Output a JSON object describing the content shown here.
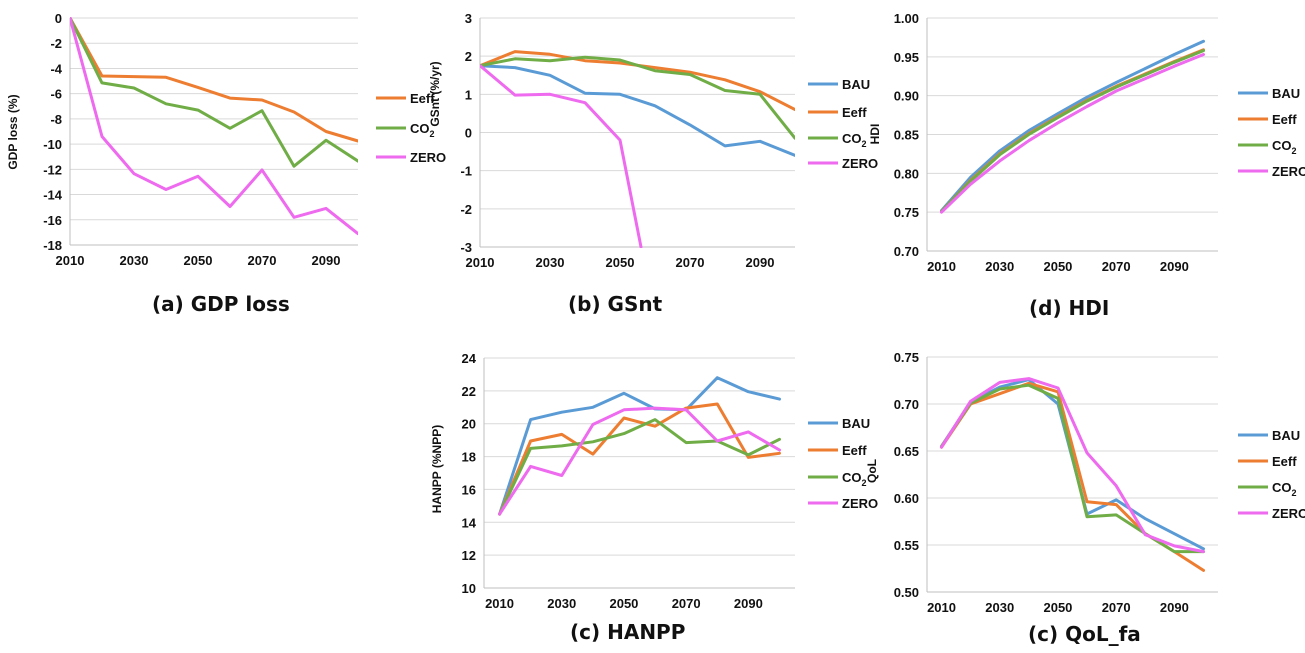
{
  "chart_data": [
    {
      "id": "gdp",
      "caption": "(a) GDP loss",
      "type": "line",
      "ylabel": "GDP loss (%)",
      "xlabel": "",
      "xlim": [
        2010,
        2100
      ],
      "ylim": [
        -18,
        0
      ],
      "xticks": [
        2010,
        2030,
        2050,
        2070,
        2090
      ],
      "yticks": [
        0,
        -2,
        -4,
        -6,
        -8,
        -10,
        -12,
        -14,
        -16,
        -18
      ],
      "ytick_labels": [
        "0",
        "-2",
        "-4",
        "-6",
        "-8",
        "-10",
        "-12",
        "-14",
        "-16",
        "-18"
      ],
      "grid": true,
      "legend": "right",
      "x": [
        2010,
        2020,
        2030,
        2040,
        2050,
        2060,
        2070,
        2080,
        2090,
        2100
      ],
      "series": [
        {
          "name": "Eeff",
          "color": "#ed7d31",
          "values": [
            0,
            -4.6,
            -4.65,
            -4.7,
            -5.5,
            -6.35,
            -6.5,
            -7.45,
            -9.0,
            -9.75
          ]
        },
        {
          "name": "CO₂",
          "color": "#70ad47",
          "values": [
            0,
            -5.15,
            -5.55,
            -6.8,
            -7.3,
            -8.75,
            -7.35,
            -11.75,
            -9.7,
            -11.35
          ]
        },
        {
          "name": "ZERO",
          "color": "#ee6aee",
          "values": [
            0,
            -9.4,
            -12.35,
            -13.6,
            -12.55,
            -14.95,
            -12.05,
            -15.8,
            -15.1,
            -17.1
          ]
        }
      ]
    },
    {
      "id": "gsnt",
      "caption": "(b) GSnt",
      "type": "line",
      "ylabel": "GSnt (%/yr)",
      "xlabel": "",
      "xlim": [
        2010,
        2100
      ],
      "ylim": [
        -3,
        3
      ],
      "xticks": [
        2010,
        2030,
        2050,
        2070,
        2090
      ],
      "yticks": [
        3,
        2,
        1,
        0,
        -1,
        -2,
        -3
      ],
      "ytick_labels": [
        "3",
        "2",
        "1",
        "0",
        "-1",
        "-2",
        "-3"
      ],
      "grid": true,
      "legend": "right",
      "x": [
        2010,
        2020,
        2030,
        2040,
        2050,
        2060,
        2070,
        2080,
        2090,
        2100
      ],
      "series": [
        {
          "name": "BAU",
          "color": "#5b9bd5",
          "values": [
            1.75,
            1.7,
            1.5,
            1.03,
            1.0,
            0.7,
            0.2,
            -0.35,
            -0.23,
            -0.6
          ]
        },
        {
          "name": "Eeff",
          "color": "#ed7d31",
          "values": [
            1.75,
            2.12,
            2.05,
            1.88,
            1.82,
            1.7,
            1.58,
            1.38,
            1.07,
            0.6
          ]
        },
        {
          "name": "CO₂",
          "color": "#70ad47",
          "values": [
            1.75,
            1.93,
            1.88,
            1.97,
            1.9,
            1.62,
            1.52,
            1.1,
            1.0,
            -0.15
          ]
        },
        {
          "name": "ZERO",
          "color": "#ee6aee",
          "x": [
            2010,
            2020,
            2030,
            2040,
            2050,
            2056
          ],
          "values": [
            1.75,
            0.98,
            1.0,
            0.78,
            -0.2,
            -3.0
          ]
        }
      ]
    },
    {
      "id": "hdi",
      "caption": "(d) HDI",
      "type": "line",
      "ylabel": "HDI",
      "xlabel": "",
      "xlim": [
        2005,
        2105
      ],
      "ylim": [
        0.7,
        1.0
      ],
      "xticks": [
        2010,
        2030,
        2050,
        2070,
        2090
      ],
      "yticks": [
        1.0,
        0.95,
        0.9,
        0.85,
        0.8,
        0.75,
        0.7
      ],
      "ytick_labels": [
        "1.00",
        "0.95",
        "0.90",
        "0.85",
        "0.80",
        "0.75",
        "0.70"
      ],
      "grid": true,
      "legend": "right",
      "x": [
        2010,
        2020,
        2030,
        2040,
        2050,
        2060,
        2070,
        2080,
        2090,
        2100
      ],
      "series": [
        {
          "name": "BAU",
          "color": "#5b9bd5",
          "values": [
            0.752,
            0.795,
            0.829,
            0.855,
            0.877,
            0.898,
            0.917,
            0.935,
            0.953,
            0.97
          ]
        },
        {
          "name": "Eeff",
          "color": "#ed7d31",
          "values": [
            0.751,
            0.791,
            0.825,
            0.851,
            0.873,
            0.894,
            0.912,
            0.928,
            0.944,
            0.959
          ]
        },
        {
          "name": "CO₂",
          "color": "#70ad47",
          "values": [
            0.751,
            0.79,
            0.824,
            0.85,
            0.872,
            0.893,
            0.911,
            0.927,
            0.943,
            0.958
          ]
        },
        {
          "name": "ZERO",
          "color": "#ee6aee",
          "values": [
            0.75,
            0.786,
            0.816,
            0.842,
            0.865,
            0.886,
            0.906,
            0.922,
            0.938,
            0.953
          ]
        }
      ]
    },
    {
      "id": "hanpp",
      "caption": "(c) HANPP",
      "type": "line",
      "ylabel": "HANPP (%NPP)",
      "xlabel": "",
      "xlim": [
        2005,
        2105
      ],
      "ylim": [
        10,
        24
      ],
      "xticks": [
        2010,
        2030,
        2050,
        2070,
        2090
      ],
      "yticks": [
        24,
        22,
        20,
        18,
        16,
        14,
        12,
        10
      ],
      "ytick_labels": [
        "24",
        "22",
        "20",
        "18",
        "16",
        "14",
        "12",
        "10"
      ],
      "grid": true,
      "legend": "right",
      "x": [
        2010,
        2020,
        2030,
        2040,
        2050,
        2060,
        2070,
        2080,
        2090,
        2100
      ],
      "series": [
        {
          "name": "BAU",
          "color": "#5b9bd5",
          "values": [
            14.5,
            20.25,
            20.7,
            21.0,
            21.85,
            20.9,
            20.85,
            22.8,
            21.95,
            21.5
          ]
        },
        {
          "name": "Eeff",
          "color": "#ed7d31",
          "values": [
            14.5,
            18.95,
            19.35,
            18.15,
            20.35,
            19.85,
            20.95,
            21.2,
            17.95,
            18.2
          ]
        },
        {
          "name": "CO₂",
          "color": "#70ad47",
          "values": [
            14.5,
            18.5,
            18.65,
            18.9,
            19.4,
            20.25,
            18.85,
            18.95,
            18.1,
            19.05
          ]
        },
        {
          "name": "ZERO",
          "color": "#ee6aee",
          "values": [
            14.5,
            17.4,
            16.85,
            19.95,
            20.85,
            20.95,
            20.85,
            18.95,
            19.5,
            18.4
          ]
        }
      ]
    },
    {
      "id": "qol",
      "caption": "(c) QoL_fa",
      "type": "line",
      "ylabel": "QoL",
      "xlabel": "",
      "xlim": [
        2005,
        2105
      ],
      "ylim": [
        0.5,
        0.75
      ],
      "xticks": [
        2010,
        2030,
        2050,
        2070,
        2090
      ],
      "yticks": [
        0.75,
        0.7,
        0.65,
        0.6,
        0.55,
        0.5
      ],
      "ytick_labels": [
        "0.75",
        "0.70",
        "0.65",
        "0.60",
        "0.55",
        "0.50"
      ],
      "grid": true,
      "legend": "right",
      "x": [
        2010,
        2020,
        2030,
        2040,
        2050,
        2060,
        2070,
        2080,
        2090,
        2100
      ],
      "series": [
        {
          "name": "BAU",
          "color": "#5b9bd5",
          "values": [
            0.655,
            0.702,
            0.718,
            0.726,
            0.7,
            0.583,
            0.598,
            0.578,
            0.562,
            0.546
          ]
        },
        {
          "name": "Eeff",
          "color": "#ed7d31",
          "values": [
            0.654,
            0.7,
            0.711,
            0.722,
            0.713,
            0.596,
            0.593,
            0.562,
            0.543,
            0.523
          ]
        },
        {
          "name": "CO₂",
          "color": "#70ad47",
          "values": [
            0.655,
            0.701,
            0.716,
            0.72,
            0.706,
            0.58,
            0.582,
            0.562,
            0.543,
            0.543
          ]
        },
        {
          "name": "ZERO",
          "color": "#ee6aee",
          "values": [
            0.654,
            0.703,
            0.723,
            0.727,
            0.717,
            0.648,
            0.613,
            0.561,
            0.549,
            0.543
          ]
        }
      ]
    }
  ]
}
